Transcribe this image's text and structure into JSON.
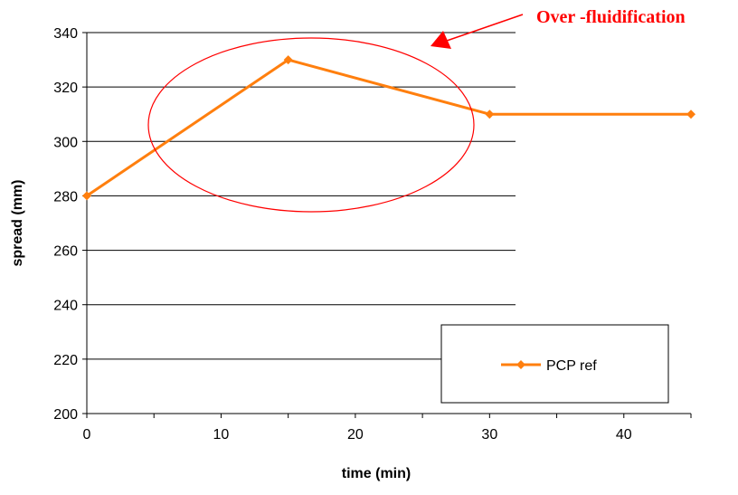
{
  "chart_data": {
    "type": "line",
    "title": "",
    "xlabel": "time (min)",
    "ylabel": "spread (mm)",
    "xlim": [
      0,
      45
    ],
    "ylim": [
      200,
      340
    ],
    "x_ticks": [
      "0",
      "10",
      "20",
      "30",
      "40"
    ],
    "y_ticks": [
      "200",
      "220",
      "240",
      "260",
      "280",
      "300",
      "320",
      "340"
    ],
    "grid": "horizontal",
    "legend_position": "bottom-right",
    "series": [
      {
        "name": "PCP ref",
        "color": "#ff7f0e",
        "marker": "diamond",
        "x": [
          0,
          15,
          30,
          45
        ],
        "y": [
          280,
          330,
          310,
          310
        ]
      }
    ],
    "annotation": {
      "text": "Over -fluidification",
      "color": "#ff0000",
      "shape": "ellipse",
      "arrow": "arrow"
    }
  }
}
